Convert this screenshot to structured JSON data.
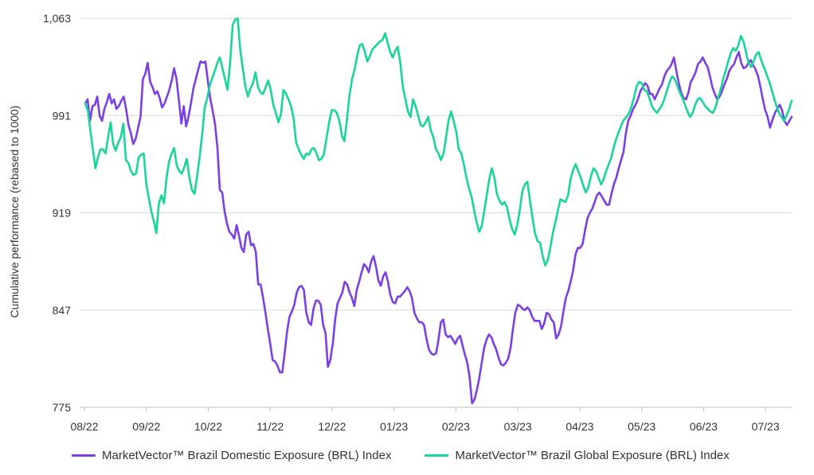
{
  "chart_data": {
    "type": "line",
    "title": "",
    "xlabel": "",
    "ylabel": "Cumulative performance (rebased to 1000)",
    "ylim": [
      775,
      1063
    ],
    "yticks": [
      "775",
      "847",
      "919",
      "991",
      "1,063"
    ],
    "ytick_values": [
      775,
      847,
      919,
      991,
      1063
    ],
    "xticks": [
      "08/22",
      "09/22",
      "10/22",
      "11/22",
      "12/22",
      "01/23",
      "02/23",
      "03/23",
      "04/23",
      "05/23",
      "06/23",
      "07/23"
    ],
    "grid": "horizontal",
    "legend_position": "bottom",
    "series": [
      {
        "name": "MarketVector™ Brazil Domestic Exposure (BRL) Index",
        "color": "#7B3FE4",
        "values": [
          1000,
          1003,
          987,
          998,
          999,
          1005,
          991,
          987,
          996,
          1001,
          1007,
          1000,
          1003,
          996,
          998,
          1002,
          1005,
          996,
          984,
          978,
          970,
          974,
          982,
          990,
          1018,
          1022,
          1030,
          1016,
          1012,
          1007,
          1009,
          1004,
          997,
          1000,
          1005,
          1010,
          1017,
          1026,
          1018,
          1002,
          985,
          998,
          983,
          990,
          1000,
          1011,
          1018,
          1025,
          1031,
          1030,
          1031,
          1017,
          1004,
          995,
          985,
          968,
          936,
          934,
          920,
          911,
          905,
          903,
          900,
          910,
          902,
          893,
          890,
          903,
          905,
          895,
          896,
          890,
          866,
          866,
          856,
          845,
          833,
          822,
          810,
          809,
          806,
          801,
          801,
          815,
          831,
          842,
          846,
          851,
          860,
          864,
          865,
          862,
          845,
          838,
          836,
          848,
          854,
          854,
          851,
          836,
          830,
          805,
          810,
          822,
          840,
          852,
          856,
          860,
          868,
          866,
          860,
          856,
          850,
          862,
          868,
          875,
          881,
          879,
          875,
          883,
          887,
          879,
          869,
          865,
          872,
          875,
          868,
          858,
          853,
          852,
          857,
          857,
          859,
          861,
          864,
          861,
          856,
          845,
          841,
          838,
          838,
          836,
          826,
          818,
          815,
          814,
          815,
          825,
          838,
          840,
          829,
          827,
          828,
          825,
          822,
          826,
          828,
          821,
          814,
          808,
          797,
          778,
          781,
          788,
          797,
          808,
          819,
          825,
          829,
          827,
          822,
          818,
          812,
          807,
          806,
          808,
          811,
          819,
          833,
          845,
          851,
          850,
          848,
          847,
          849,
          847,
          842,
          839,
          839,
          839,
          833,
          837,
          845,
          844,
          840,
          838,
          826,
          829,
          835,
          846,
          856,
          861,
          868,
          876,
          888,
          893,
          893,
          896,
          906,
          915,
          919,
          922,
          927,
          932,
          934,
          931,
          928,
          925,
          925,
          933,
          940,
          945,
          952,
          958,
          964,
          978,
          987,
          991,
          996,
          999,
          1003,
          1009,
          1012,
          1015,
          1013,
          1007,
          1007,
          1003,
          1007,
          1011,
          1014,
          1020,
          1024,
          1026,
          1029,
          1034,
          1024,
          1015,
          1008,
          1004,
          1003,
          1008,
          1016,
          1019,
          1023,
          1029,
          1031,
          1034,
          1030,
          1027,
          1020,
          1012,
          1007,
          1003,
          1005,
          1009,
          1014,
          1018,
          1024,
          1027,
          1029,
          1034,
          1038,
          1030,
          1026,
          1027,
          1030,
          1032,
          1028,
          1025,
          1020,
          1012,
          1003,
          995,
          990,
          982,
          988,
          993,
          996,
          999,
          995,
          987,
          984,
          987,
          990
        ]
      },
      {
        "name": "MarketVector™ Brazil Global Exposure (BRL) Index",
        "color": "#19D49D",
        "values": [
          1000,
          995,
          980,
          966,
          952,
          960,
          966,
          966,
          963,
          975,
          986,
          970,
          965,
          971,
          975,
          985,
          958,
          956,
          950,
          947,
          948,
          960,
          962,
          963,
          941,
          930,
          920,
          913,
          904,
          926,
          932,
          926,
          945,
          957,
          963,
          967,
          954,
          950,
          948,
          953,
          959,
          945,
          936,
          933,
          946,
          960,
          977,
          997,
          1004,
          1013,
          1019,
          1024,
          1030,
          1034,
          1026,
          1018,
          1010,
          1030,
          1058,
          1062,
          1063,
          1040,
          1026,
          1013,
          1005,
          1011,
          1015,
          1023,
          1012,
          1008,
          1007,
          1012,
          1017,
          1010,
          999,
          993,
          986,
          992,
          1010,
          1007,
          1003,
          998,
          989,
          971,
          966,
          962,
          959,
          963,
          962,
          966,
          967,
          963,
          958,
          959,
          963,
          975,
          986,
          995,
          995,
          993,
          987,
          976,
          972,
          988,
          1006,
          1018,
          1025,
          1035,
          1043,
          1044,
          1038,
          1031,
          1035,
          1040,
          1042,
          1044,
          1046,
          1047,
          1052,
          1045,
          1038,
          1034,
          1039,
          1042,
          1030,
          1012,
          1003,
          994,
          990,
          1003,
          998,
          991,
          984,
          983,
          986,
          990,
          980,
          975,
          966,
          963,
          958,
          963,
          975,
          988,
          994,
          987,
          979,
          966,
          963,
          955,
          945,
          937,
          931,
          921,
          912,
          905,
          909,
          920,
          932,
          944,
          952,
          945,
          933,
          928,
          925,
          927,
          923,
          914,
          907,
          903,
          910,
          921,
          935,
          940,
          942,
          928,
          915,
          904,
          898,
          897,
          887,
          880,
          884,
          893,
          904,
          912,
          921,
          929,
          928,
          927,
          932,
          944,
          951,
          955,
          950,
          945,
          939,
          934,
          938,
          946,
          952,
          950,
          945,
          940,
          944,
          950,
          955,
          960,
          968,
          974,
          979,
          984,
          988,
          990,
          993,
          998,
          1005,
          1013,
          1016,
          1015,
          1010,
          1009,
          1004,
          998,
          995,
          993,
          996,
          999,
          1004,
          1010,
          1016,
          1020,
          1018,
          1013,
          1008,
          1004,
          999,
          994,
          990,
          993,
          999,
          1003,
          1004,
          1001,
          998,
          996,
          994,
          993,
          997,
          1004,
          1010,
          1018,
          1024,
          1031,
          1037,
          1041,
          1039,
          1043,
          1050,
          1046,
          1038,
          1030,
          1027,
          1031,
          1036,
          1038,
          1032,
          1027,
          1022,
          1017,
          1011,
          1004,
          998,
          993,
          990,
          987,
          991,
          996,
          1002
        ]
      }
    ]
  }
}
